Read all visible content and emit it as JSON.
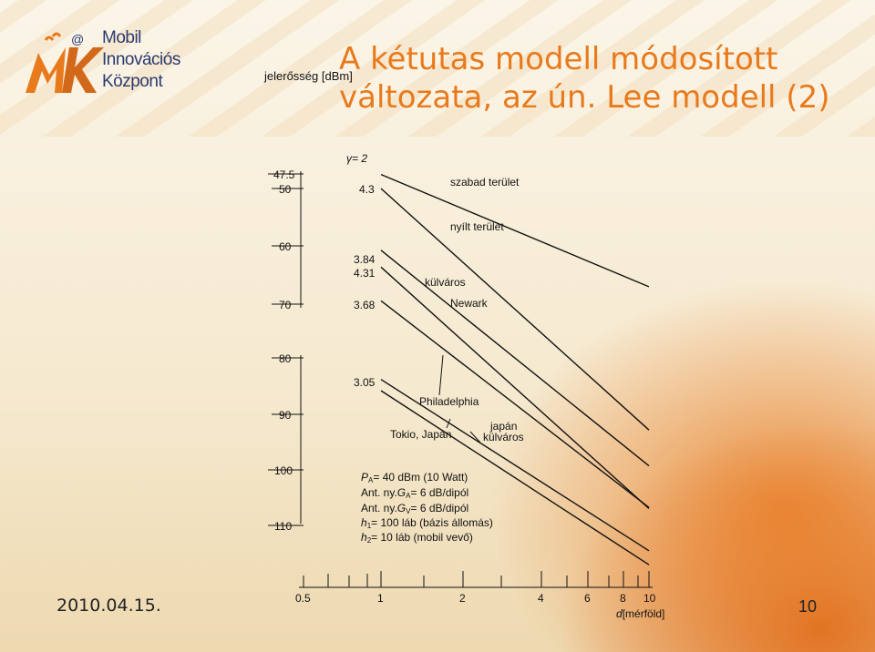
{
  "slide": {
    "title_line1": "A kétutas modell módosított",
    "title_line2": "változata, az ún. Lee modell (2)",
    "date": "2010.04.15.",
    "page_number": "10"
  },
  "logo": {
    "line1": "Mobil",
    "line2": "Innovációs",
    "line3": "Központ",
    "badge": "@",
    "letters": "MK"
  },
  "chart_data": {
    "type": "line",
    "ylabel": "jelerősség [dBm]",
    "xlabel_d": "d",
    "xlabel_unit": "[mérföld]",
    "x_scale": "log",
    "x_ticks": [
      0.5,
      1,
      2,
      4,
      6,
      8,
      10
    ],
    "x_tick_labels": [
      "0.5",
      "1",
      "2",
      "4",
      "6",
      "8",
      "10"
    ],
    "y_ticks": [
      -47.5,
      -50,
      -60,
      -70,
      -80,
      -90,
      -100,
      -110
    ],
    "y_tick_labels": [
      "47.5",
      "50",
      "60",
      "70",
      "80",
      "90",
      "100",
      "110"
    ],
    "gamma_label": "γ= 2",
    "series": [
      {
        "name": "szabad terület",
        "slope_label": "2",
        "x": [
          1,
          10
        ],
        "y": [
          -47.5,
          -67.5
        ]
      },
      {
        "name": "nyílt terület",
        "slope_label": "4.3",
        "x": [
          1,
          10
        ],
        "y": [
          -50,
          -93
        ]
      },
      {
        "name": "külváros",
        "slope_label": "3.84",
        "x": [
          1,
          10
        ],
        "y": [
          -61,
          -99.4
        ]
      },
      {
        "name": "Newark",
        "slope_label": "4.31",
        "x": [
          1,
          10
        ],
        "y": [
          -64,
          -107
        ]
      },
      {
        "name": "Philadelphia",
        "slope_label": "3.68",
        "x": [
          1,
          10
        ],
        "y": [
          -70,
          -106.8
        ]
      },
      {
        "name": "japán külváros",
        "slope_label": "3.05",
        "x": [
          1,
          10
        ],
        "y": [
          -84,
          -114.5
        ]
      },
      {
        "name": "Tokio, Japán",
        "slope_label": "",
        "x": [
          1,
          10
        ],
        "y": [
          -86,
          -117
        ]
      }
    ],
    "annotations": {
      "pa": "= 40 dBm (10 Watt)",
      "ga_prefix": "Ant. ny.",
      "ga": "= 6 dB/dipól",
      "gv_prefix": "Ant. ny.",
      "gv": "= 6 dB/dipól",
      "h1": "= 100 láb (bázis állomás)",
      "h2": "= 10 láb (mobil vevő)"
    }
  }
}
